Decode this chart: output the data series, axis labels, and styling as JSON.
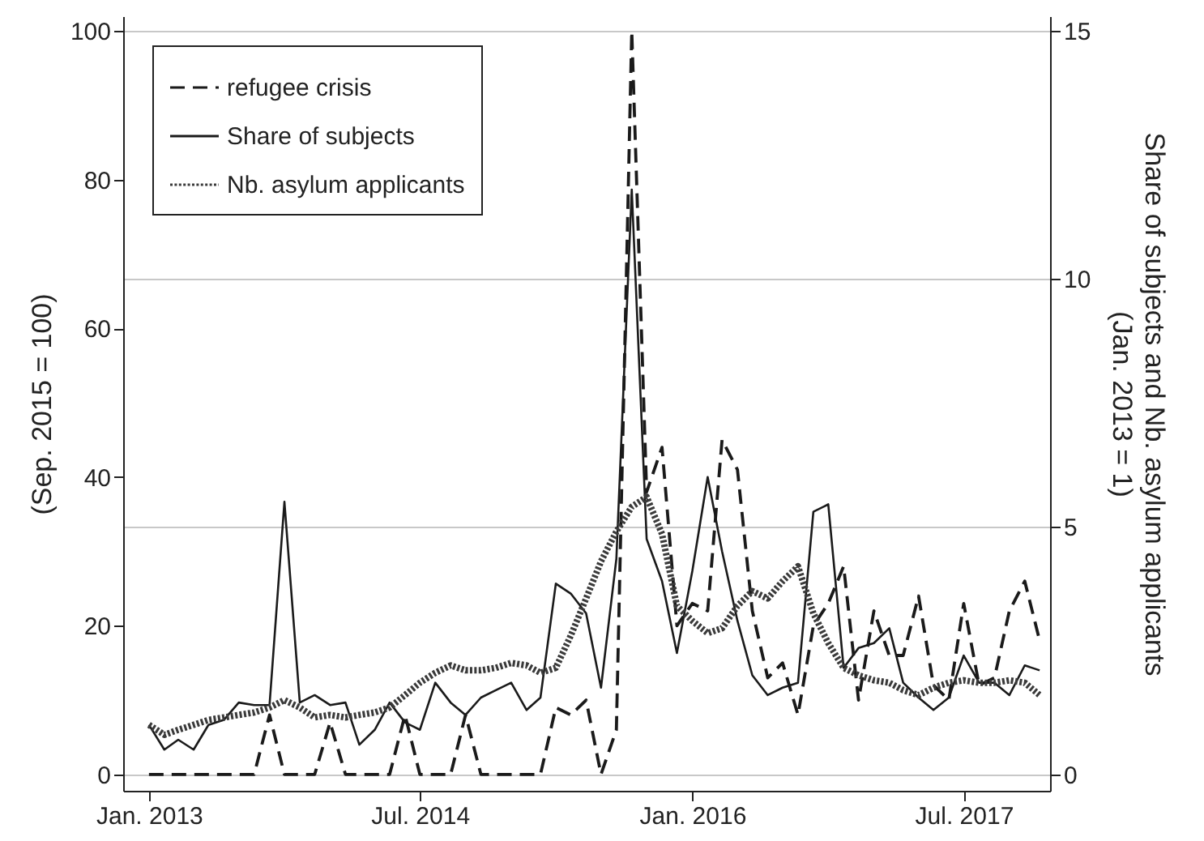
{
  "chart_data": {
    "type": "line",
    "ylabel": "(Sep. 2015 = 100)",
    "y2label": "Share of subjects and Nb. asylum applicants\n(Jan. 2013 = 1)",
    "x": [
      "2013-01",
      "2013-02",
      "2013-03",
      "2013-04",
      "2013-05",
      "2013-06",
      "2013-07",
      "2013-08",
      "2013-09",
      "2013-10",
      "2013-11",
      "2013-12",
      "2014-01",
      "2014-02",
      "2014-03",
      "2014-04",
      "2014-05",
      "2014-06",
      "2014-07",
      "2014-08",
      "2014-09",
      "2014-10",
      "2014-11",
      "2014-12",
      "2015-01",
      "2015-02",
      "2015-03",
      "2015-04",
      "2015-05",
      "2015-06",
      "2015-07",
      "2015-08",
      "2015-09",
      "2015-10",
      "2015-11",
      "2015-12",
      "2016-01",
      "2016-02",
      "2016-03",
      "2016-04",
      "2016-05",
      "2016-06",
      "2016-07",
      "2016-08",
      "2016-09",
      "2016-10",
      "2016-11",
      "2016-12",
      "2017-01",
      "2017-02",
      "2017-03",
      "2017-04",
      "2017-05",
      "2017-06",
      "2017-07",
      "2017-08",
      "2017-09",
      "2017-10",
      "2017-11",
      "2017-12"
    ],
    "series": [
      {
        "name": "refugee crisis",
        "color": "#1a1a1a",
        "line_style": "dashed",
        "values": [
          0,
          0,
          0,
          0,
          0,
          0,
          0,
          0,
          8,
          0,
          0,
          0,
          7,
          0,
          0,
          0,
          0,
          8,
          0,
          0,
          0,
          8,
          0,
          0,
          0,
          0,
          0,
          9,
          8,
          10,
          0,
          6,
          100,
          38,
          44,
          20,
          23,
          22,
          45,
          41,
          22,
          13,
          15,
          8,
          20,
          23,
          28,
          10,
          22,
          16,
          16,
          24,
          12,
          10,
          23,
          12,
          13,
          22,
          26,
          18
        ]
      },
      {
        "name": "Share of subjects",
        "color": "#1a1a1a",
        "line_style": "solid",
        "axis": "y2",
        "values": [
          1.0,
          0.5,
          0.7,
          0.5,
          1.0,
          1.1,
          1.45,
          1.4,
          1.4,
          5.5,
          1.45,
          1.6,
          1.4,
          1.45,
          0.6,
          0.9,
          1.45,
          1.05,
          0.9,
          1.85,
          1.45,
          1.2,
          1.55,
          1.7,
          1.85,
          1.3,
          1.55,
          3.85,
          3.65,
          3.25,
          1.75,
          4.35,
          11.8,
          4.75,
          3.9,
          2.45,
          4.1,
          6.0,
          4.5,
          3.1,
          2.0,
          1.6,
          1.75,
          1.85,
          5.3,
          5.45,
          2.15,
          2.55,
          2.65,
          2.95,
          1.85,
          1.55,
          1.3,
          1.55,
          2.4,
          1.85,
          1.85,
          1.6,
          2.2,
          2.1
        ]
      },
      {
        "name": "Nb. asylum applicants",
        "color": "#3a3a3a",
        "line_style": "dotted",
        "axis": "y2",
        "values": [
          1.0,
          0.8,
          0.9,
          1.0,
          1.1,
          1.15,
          1.2,
          1.25,
          1.35,
          1.5,
          1.35,
          1.15,
          1.2,
          1.15,
          1.2,
          1.25,
          1.35,
          1.6,
          1.85,
          2.05,
          2.2,
          2.1,
          2.1,
          2.15,
          2.25,
          2.2,
          2.05,
          2.15,
          2.8,
          3.55,
          4.3,
          4.9,
          5.4,
          5.6,
          4.85,
          3.4,
          3.1,
          2.85,
          2.95,
          3.4,
          3.7,
          3.55,
          3.9,
          4.2,
          3.25,
          2.65,
          2.15,
          2.0,
          1.9,
          1.85,
          1.7,
          1.6,
          1.75,
          1.85,
          1.9,
          1.85,
          1.85,
          1.9,
          1.85,
          1.6
        ]
      }
    ],
    "xlim": [
      "2012-11-10",
      "2017-12-22"
    ],
    "xticks": [
      {
        "value": "2013-01",
        "label": "Jan. 2013"
      },
      {
        "value": "2014-07",
        "label": "Jul. 2014"
      },
      {
        "value": "2016-01",
        "label": "Jan. 2016"
      },
      {
        "value": "2017-07",
        "label": "Jul. 2017"
      }
    ],
    "ylim": [
      -2.2,
      102
    ],
    "yticks": [
      0,
      20,
      40,
      60,
      80,
      100
    ],
    "y2lim": [
      -0.33,
      15.3
    ],
    "y2ticks": [
      0,
      5,
      10,
      15
    ],
    "grid": "y2",
    "legend": "top left"
  }
}
